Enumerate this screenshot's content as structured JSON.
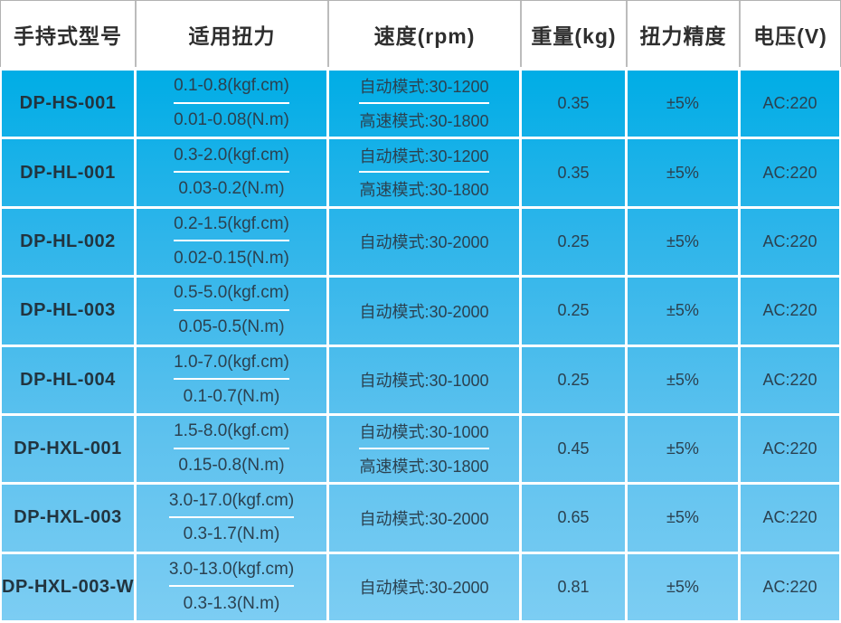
{
  "table_title": "handheld-screwdriver-specifications",
  "colors": {
    "body_gradient_top": "#00ade6",
    "body_gradient_bottom": "#7ccdf3",
    "grid_line": "#ffffff",
    "header_bg": "#ffffff",
    "header_border": "#b2b2b2",
    "header_text": "#2e2e2e",
    "body_text": "#2b4150"
  },
  "header": {
    "columns": [
      "手持式型号",
      "适用扭力",
      "速度(rpm)",
      "重量(kg)",
      "扭力精度",
      "电压(V)"
    ]
  },
  "rows": [
    {
      "model": "DP-HS-001",
      "torque": [
        "0.1-0.8(kgf.cm)",
        "0.01-0.08(N.m)"
      ],
      "speed": [
        "自动模式:30-1200",
        "高速模式:30-1800"
      ],
      "weight": "0.35",
      "precision": "±5%",
      "voltage": "AC:220"
    },
    {
      "model": "DP-HL-001",
      "torque": [
        "0.3-2.0(kgf.cm)",
        "0.03-0.2(N.m)"
      ],
      "speed": [
        "自动模式:30-1200",
        "高速模式:30-1800"
      ],
      "weight": "0.35",
      "precision": "±5%",
      "voltage": "AC:220"
    },
    {
      "model": "DP-HL-002",
      "torque": [
        "0.2-1.5(kgf.cm)",
        "0.02-0.15(N.m)"
      ],
      "speed": [
        "自动模式:30-2000"
      ],
      "weight": "0.25",
      "precision": "±5%",
      "voltage": "AC:220"
    },
    {
      "model": "DP-HL-003",
      "torque": [
        "0.5-5.0(kgf.cm)",
        "0.05-0.5(N.m)"
      ],
      "speed": [
        "自动模式:30-2000"
      ],
      "weight": "0.25",
      "precision": "±5%",
      "voltage": "AC:220"
    },
    {
      "model": "DP-HL-004",
      "torque": [
        "1.0-7.0(kgf.cm)",
        "0.1-0.7(N.m)"
      ],
      "speed": [
        "自动模式:30-1000"
      ],
      "weight": "0.25",
      "precision": "±5%",
      "voltage": "AC:220"
    },
    {
      "model": "DP-HXL-001",
      "torque": [
        "1.5-8.0(kgf.cm)",
        "0.15-0.8(N.m)"
      ],
      "speed": [
        "自动模式:30-1000",
        "高速模式:30-1800"
      ],
      "weight": "0.45",
      "precision": "±5%",
      "voltage": "AC:220"
    },
    {
      "model": "DP-HXL-003",
      "torque": [
        "3.0-17.0(kgf.cm)",
        "0.3-1.7(N.m)"
      ],
      "speed": [
        "自动模式:30-2000"
      ],
      "weight": "0.65",
      "precision": "±5%",
      "voltage": "AC:220"
    },
    {
      "model": "DP-HXL-003-W",
      "torque": [
        "3.0-13.0(kgf.cm)",
        "0.3-1.3(N.m)"
      ],
      "speed": [
        "自动模式:30-2000"
      ],
      "weight": "0.81",
      "precision": "±5%",
      "voltage": "AC:220"
    }
  ]
}
